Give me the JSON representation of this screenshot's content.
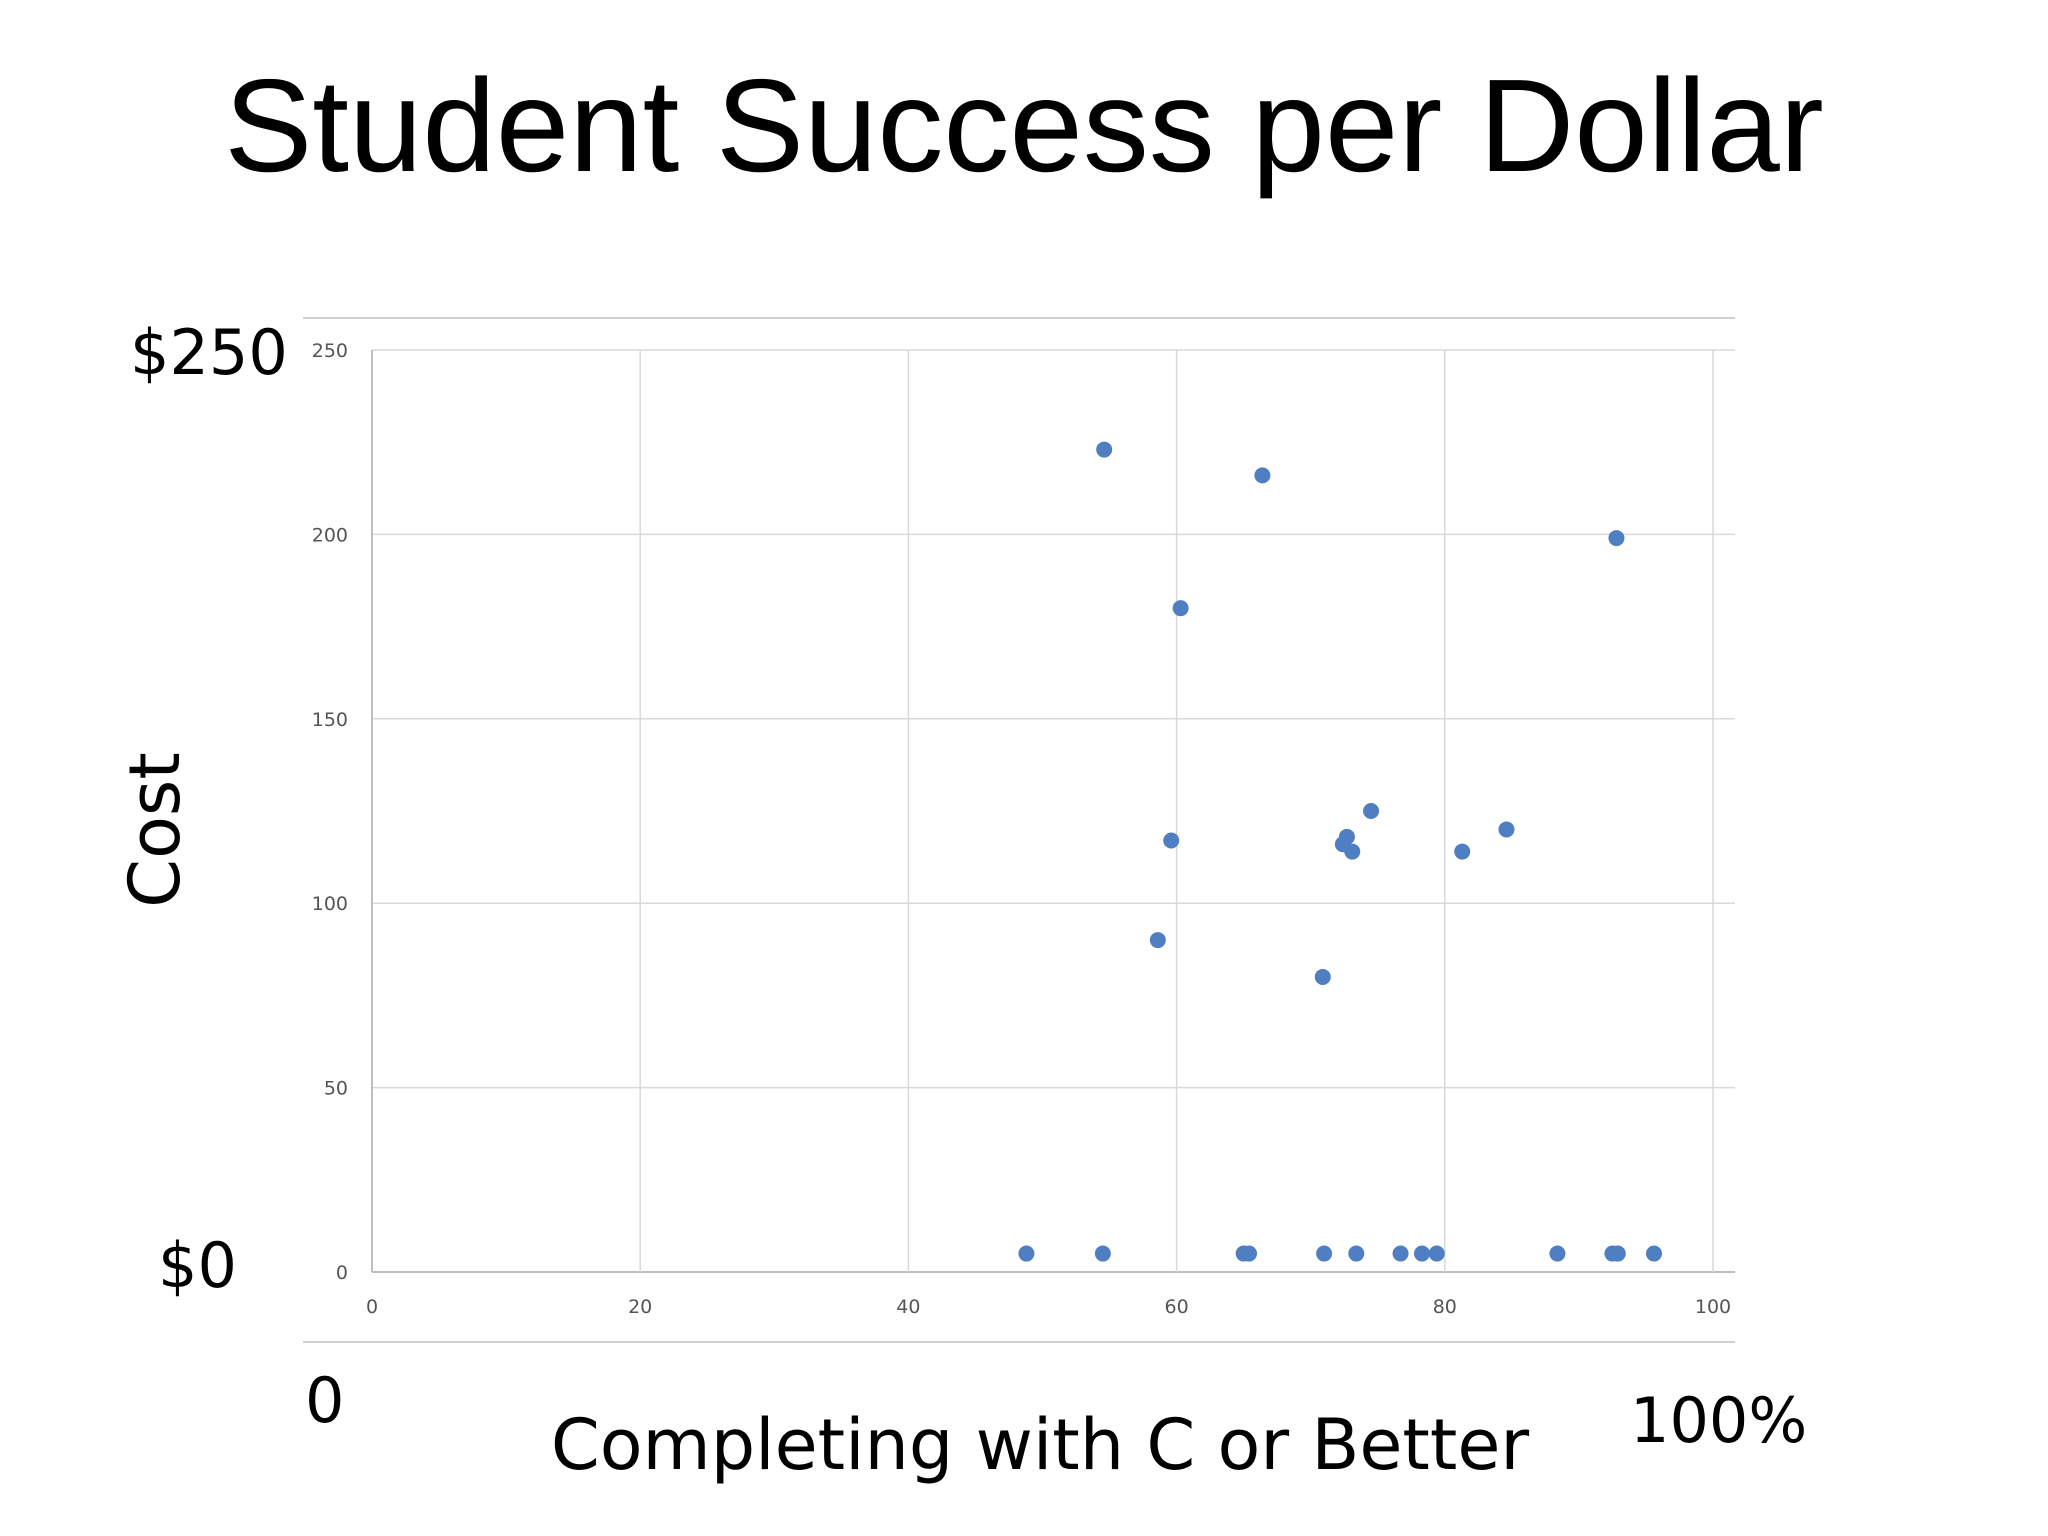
{
  "slide": {
    "title": "Student Success per Dollar",
    "y_max_label": "$250",
    "y_min_label": "$0",
    "x_min_label": "0",
    "x_max_label": "100%",
    "y_axis_title": "Cost",
    "x_axis_title": "Completing with C or Better"
  },
  "chart_data": {
    "type": "scatter",
    "xlim": [
      0,
      100
    ],
    "ylim": [
      0,
      250
    ],
    "grid": true,
    "legend": "none",
    "x_ticks": [
      "0",
      "20",
      "40",
      "60",
      "80",
      "100"
    ],
    "y_ticks": [
      "0",
      "50",
      "100",
      "150",
      "200",
      "250"
    ],
    "marker_color": "#4f7ec2",
    "points": [
      {
        "x": 54.6,
        "y": 223
      },
      {
        "x": 66.4,
        "y": 216
      },
      {
        "x": 92.8,
        "y": 199
      },
      {
        "x": 60.3,
        "y": 180
      },
      {
        "x": 74.5,
        "y": 125
      },
      {
        "x": 84.6,
        "y": 120
      },
      {
        "x": 72.7,
        "y": 118
      },
      {
        "x": 59.6,
        "y": 117
      },
      {
        "x": 72.4,
        "y": 116
      },
      {
        "x": 73.1,
        "y": 114
      },
      {
        "x": 81.3,
        "y": 114
      },
      {
        "x": 58.6,
        "y": 90
      },
      {
        "x": 70.9,
        "y": 80
      },
      {
        "x": 48.8,
        "y": 5
      },
      {
        "x": 54.5,
        "y": 5
      },
      {
        "x": 65.0,
        "y": 5
      },
      {
        "x": 65.4,
        "y": 5
      },
      {
        "x": 71.0,
        "y": 5
      },
      {
        "x": 73.4,
        "y": 5
      },
      {
        "x": 76.7,
        "y": 5
      },
      {
        "x": 78.3,
        "y": 5
      },
      {
        "x": 79.4,
        "y": 5
      },
      {
        "x": 88.4,
        "y": 5
      },
      {
        "x": 92.5,
        "y": 5
      },
      {
        "x": 92.9,
        "y": 5
      },
      {
        "x": 95.6,
        "y": 5
      }
    ]
  }
}
